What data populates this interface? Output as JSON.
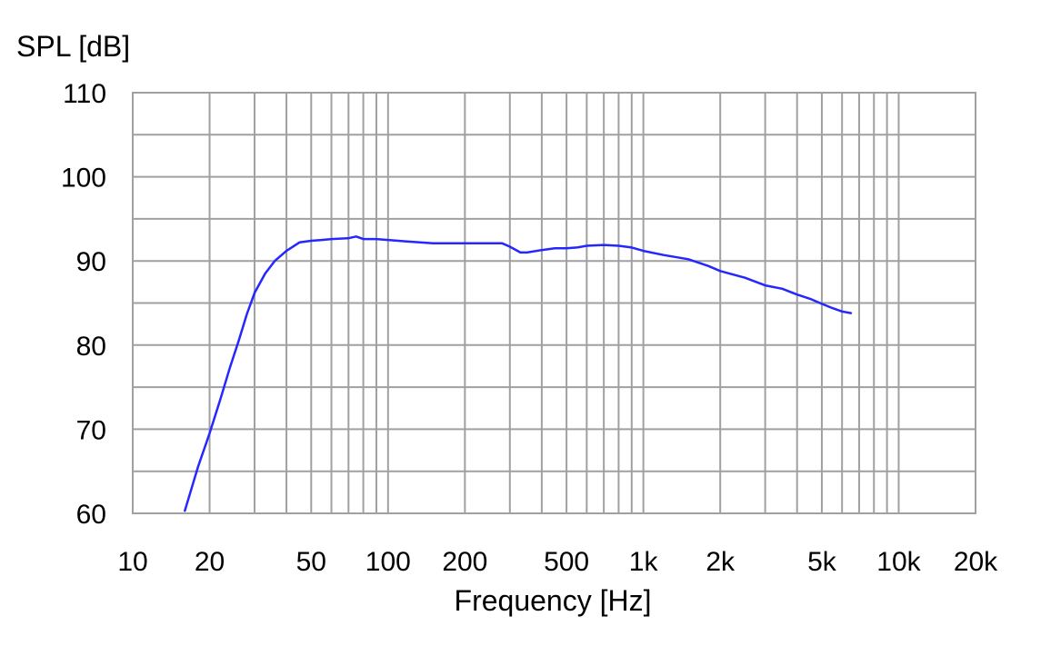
{
  "chart_data": {
    "type": "line",
    "title": "",
    "xlabel": "Frequency [Hz]",
    "ylabel": "SPL [dB]",
    "x_scale": "log",
    "xlim": [
      10,
      20000
    ],
    "ylim": [
      60,
      110
    ],
    "grid": true,
    "x_ticks": [
      {
        "value": 10,
        "label": "10"
      },
      {
        "value": 20,
        "label": "20"
      },
      {
        "value": 50,
        "label": "50"
      },
      {
        "value": 100,
        "label": "100"
      },
      {
        "value": 200,
        "label": "200"
      },
      {
        "value": 500,
        "label": "500"
      },
      {
        "value": 1000,
        "label": "1k"
      },
      {
        "value": 2000,
        "label": "2k"
      },
      {
        "value": 5000,
        "label": "5k"
      },
      {
        "value": 10000,
        "label": "10k"
      },
      {
        "value": 20000,
        "label": "20k"
      }
    ],
    "y_ticks": [
      {
        "value": 60,
        "label": "60"
      },
      {
        "value": 70,
        "label": "70"
      },
      {
        "value": 80,
        "label": "80"
      },
      {
        "value": 90,
        "label": "90"
      },
      {
        "value": 100,
        "label": "100"
      },
      {
        "value": 110,
        "label": "110"
      }
    ],
    "y_minor_ticks": [
      65,
      75,
      85,
      95,
      105
    ],
    "x_minor_ticks": [
      30,
      40,
      60,
      70,
      80,
      90,
      300,
      400,
      600,
      700,
      800,
      900,
      3000,
      4000,
      6000,
      7000,
      8000,
      9000
    ],
    "colors": {
      "line": "#2626ff",
      "grid": "#a0a0a0",
      "frame": "#a0a0a0"
    },
    "series": [
      {
        "name": "",
        "x": [
          16,
          18,
          20,
          22,
          24,
          26,
          28,
          30,
          33,
          36,
          40,
          45,
          50,
          55,
          60,
          70,
          75,
          80,
          90,
          100,
          120,
          150,
          200,
          250,
          280,
          300,
          330,
          350,
          400,
          450,
          500,
          550,
          600,
          700,
          800,
          900,
          1000,
          1200,
          1500,
          1800,
          2000,
          2500,
          3000,
          3500,
          4000,
          4500,
          5000,
          5500,
          6000,
          6500
        ],
        "values": [
          60.3,
          65.5,
          69.5,
          73.5,
          77.3,
          80.5,
          83.7,
          86.2,
          88.5,
          90.0,
          91.2,
          92.2,
          92.4,
          92.5,
          92.6,
          92.7,
          92.9,
          92.6,
          92.6,
          92.5,
          92.3,
          92.1,
          92.1,
          92.1,
          92.1,
          91.7,
          91.0,
          91.0,
          91.3,
          91.5,
          91.5,
          91.6,
          91.8,
          91.9,
          91.8,
          91.6,
          91.2,
          90.7,
          90.2,
          89.4,
          88.8,
          88.0,
          87.1,
          86.7,
          86.0,
          85.5,
          84.9,
          84.4,
          84.0,
          83.8
        ]
      }
    ]
  }
}
